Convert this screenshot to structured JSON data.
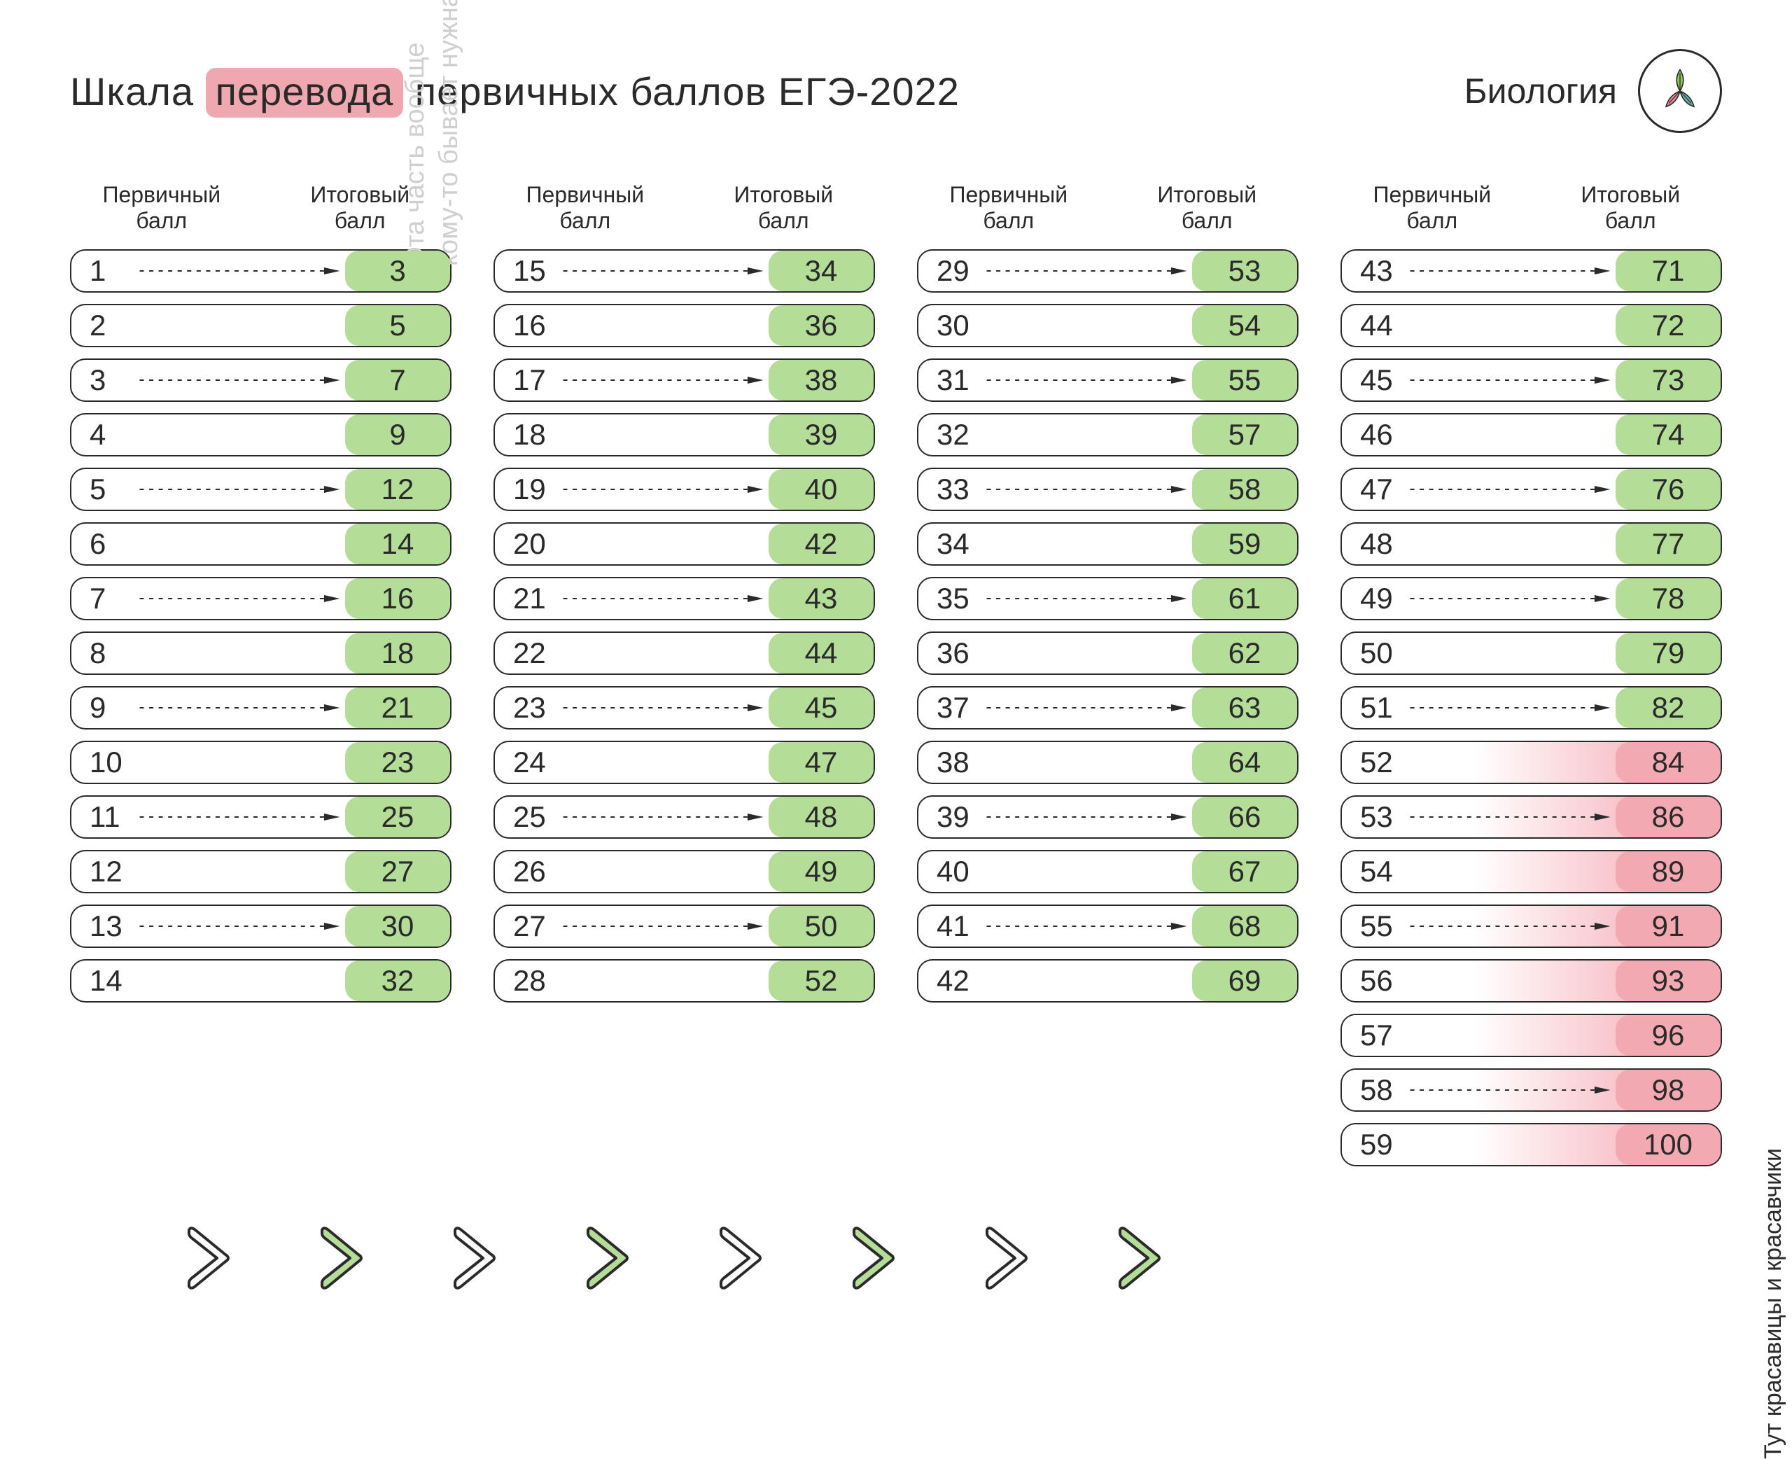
{
  "title": {
    "pre": "Шкала",
    "highlight": "перевода",
    "post": "первичных баллов ЕГЭ-2022"
  },
  "subject": "Биология",
  "colors": {
    "text": "#2a2a2a",
    "highlight_bg": "#f0a8b0",
    "green": "#b4dd97",
    "pink": "#f3a9b1",
    "side_note_gray": "#cfcfcf",
    "background": "#ffffff",
    "leaf_green": "#8fbf5c",
    "leaf_pink": "#e48a98",
    "leaf_teal": "#6bb3a3"
  },
  "headers": {
    "primary": "Первичный\nбалл",
    "final": "Итоговый\nбалл"
  },
  "side_notes": {
    "left": "Эта часть вообще\nкому-то бывает нужна?",
    "right": "Тут красавицы и красавчики"
  },
  "columns": [
    [
      {
        "p": 1,
        "f": 3,
        "arrow": true,
        "variant": "green"
      },
      {
        "p": 2,
        "f": 5,
        "arrow": false,
        "variant": "green"
      },
      {
        "p": 3,
        "f": 7,
        "arrow": true,
        "variant": "green"
      },
      {
        "p": 4,
        "f": 9,
        "arrow": false,
        "variant": "green"
      },
      {
        "p": 5,
        "f": 12,
        "arrow": true,
        "variant": "green"
      },
      {
        "p": 6,
        "f": 14,
        "arrow": false,
        "variant": "green"
      },
      {
        "p": 7,
        "f": 16,
        "arrow": true,
        "variant": "green"
      },
      {
        "p": 8,
        "f": 18,
        "arrow": false,
        "variant": "green"
      },
      {
        "p": 9,
        "f": 21,
        "arrow": true,
        "variant": "green"
      },
      {
        "p": 10,
        "f": 23,
        "arrow": false,
        "variant": "green"
      },
      {
        "p": 11,
        "f": 25,
        "arrow": true,
        "variant": "green"
      },
      {
        "p": 12,
        "f": 27,
        "arrow": false,
        "variant": "green"
      },
      {
        "p": 13,
        "f": 30,
        "arrow": true,
        "variant": "green"
      },
      {
        "p": 14,
        "f": 32,
        "arrow": false,
        "variant": "green"
      }
    ],
    [
      {
        "p": 15,
        "f": 34,
        "arrow": true,
        "variant": "green"
      },
      {
        "p": 16,
        "f": 36,
        "arrow": false,
        "variant": "green"
      },
      {
        "p": 17,
        "f": 38,
        "arrow": true,
        "variant": "green"
      },
      {
        "p": 18,
        "f": 39,
        "arrow": false,
        "variant": "green"
      },
      {
        "p": 19,
        "f": 40,
        "arrow": true,
        "variant": "green"
      },
      {
        "p": 20,
        "f": 42,
        "arrow": false,
        "variant": "green"
      },
      {
        "p": 21,
        "f": 43,
        "arrow": true,
        "variant": "green"
      },
      {
        "p": 22,
        "f": 44,
        "arrow": false,
        "variant": "green"
      },
      {
        "p": 23,
        "f": 45,
        "arrow": true,
        "variant": "green"
      },
      {
        "p": 24,
        "f": 47,
        "arrow": false,
        "variant": "green"
      },
      {
        "p": 25,
        "f": 48,
        "arrow": true,
        "variant": "green"
      },
      {
        "p": 26,
        "f": 49,
        "arrow": false,
        "variant": "green"
      },
      {
        "p": 27,
        "f": 50,
        "arrow": true,
        "variant": "green"
      },
      {
        "p": 28,
        "f": 52,
        "arrow": false,
        "variant": "green"
      }
    ],
    [
      {
        "p": 29,
        "f": 53,
        "arrow": true,
        "variant": "green"
      },
      {
        "p": 30,
        "f": 54,
        "arrow": false,
        "variant": "green"
      },
      {
        "p": 31,
        "f": 55,
        "arrow": true,
        "variant": "green"
      },
      {
        "p": 32,
        "f": 57,
        "arrow": false,
        "variant": "green"
      },
      {
        "p": 33,
        "f": 58,
        "arrow": true,
        "variant": "green"
      },
      {
        "p": 34,
        "f": 59,
        "arrow": false,
        "variant": "green"
      },
      {
        "p": 35,
        "f": 61,
        "arrow": true,
        "variant": "green"
      },
      {
        "p": 36,
        "f": 62,
        "arrow": false,
        "variant": "green"
      },
      {
        "p": 37,
        "f": 63,
        "arrow": true,
        "variant": "green"
      },
      {
        "p": 38,
        "f": 64,
        "arrow": false,
        "variant": "green"
      },
      {
        "p": 39,
        "f": 66,
        "arrow": true,
        "variant": "green"
      },
      {
        "p": 40,
        "f": 67,
        "arrow": false,
        "variant": "green"
      },
      {
        "p": 41,
        "f": 68,
        "arrow": true,
        "variant": "green"
      },
      {
        "p": 42,
        "f": 69,
        "arrow": false,
        "variant": "green"
      }
    ],
    [
      {
        "p": 43,
        "f": 71,
        "arrow": true,
        "variant": "green"
      },
      {
        "p": 44,
        "f": 72,
        "arrow": false,
        "variant": "green"
      },
      {
        "p": 45,
        "f": 73,
        "arrow": true,
        "variant": "green"
      },
      {
        "p": 46,
        "f": 74,
        "arrow": false,
        "variant": "green"
      },
      {
        "p": 47,
        "f": 76,
        "arrow": true,
        "variant": "green"
      },
      {
        "p": 48,
        "f": 77,
        "arrow": false,
        "variant": "green"
      },
      {
        "p": 49,
        "f": 78,
        "arrow": true,
        "variant": "green"
      },
      {
        "p": 50,
        "f": 79,
        "arrow": false,
        "variant": "green"
      },
      {
        "p": 51,
        "f": 82,
        "arrow": true,
        "variant": "green"
      },
      {
        "p": 52,
        "f": 84,
        "arrow": false,
        "variant": "pink"
      },
      {
        "p": 53,
        "f": 86,
        "arrow": true,
        "variant": "pink"
      },
      {
        "p": 54,
        "f": 89,
        "arrow": false,
        "variant": "pink"
      },
      {
        "p": 55,
        "f": 91,
        "arrow": true,
        "variant": "pink"
      },
      {
        "p": 56,
        "f": 93,
        "arrow": false,
        "variant": "pink"
      },
      {
        "p": 57,
        "f": 96,
        "arrow": false,
        "variant": "pink"
      },
      {
        "p": 58,
        "f": 98,
        "arrow": true,
        "variant": "pink"
      },
      {
        "p": 59,
        "f": 100,
        "arrow": false,
        "variant": "pink"
      }
    ]
  ],
  "chevrons": [
    {
      "filled": false
    },
    {
      "filled": true
    },
    {
      "filled": false
    },
    {
      "filled": true
    },
    {
      "filled": false
    },
    {
      "filled": true
    },
    {
      "filled": false
    },
    {
      "filled": true
    }
  ]
}
